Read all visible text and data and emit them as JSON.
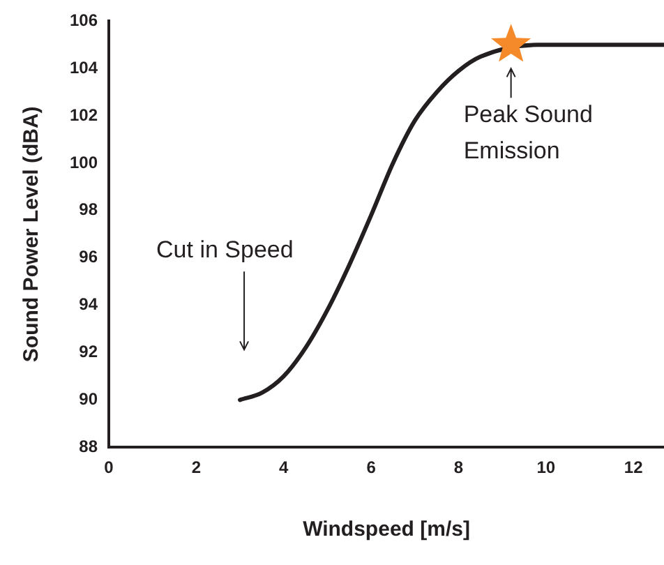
{
  "chart_data": {
    "type": "line",
    "xlabel": "Windspeed [m/s]",
    "ylabel": "Sound Power Level (dBA)",
    "xlim": [
      0,
      12.7
    ],
    "xticks": [
      0,
      2,
      4,
      6,
      8,
      10,
      12
    ],
    "ylim": [
      88,
      106
    ],
    "yticks": [
      88,
      90,
      92,
      94,
      96,
      98,
      100,
      102,
      104,
      106
    ],
    "grid": false,
    "legend": false,
    "marker": "none",
    "line_style": "solid",
    "series": [
      {
        "type": "line",
        "color": "#231f20",
        "x": [
          3,
          3.5,
          4,
          4.5,
          5,
          5.5,
          6,
          6.5,
          7,
          7.5,
          8,
          8.5,
          9.8,
          10.5,
          12.7
        ],
        "values": [
          90,
          90.3,
          91,
          92.2,
          93.8,
          95.7,
          97.8,
          100,
          101.8,
          103,
          103.9,
          104.5,
          105,
          105,
          105
        ]
      },
      {
        "type": "scatter",
        "color": "#f58a2b",
        "marker": "star",
        "x": [
          9.2
        ],
        "values": [
          105
        ]
      }
    ],
    "annotations": [
      "Cut in Speed",
      {
        "text": "Peak Sound Emission",
        "x": 9.2,
        "y": 105
      }
    ]
  }
}
